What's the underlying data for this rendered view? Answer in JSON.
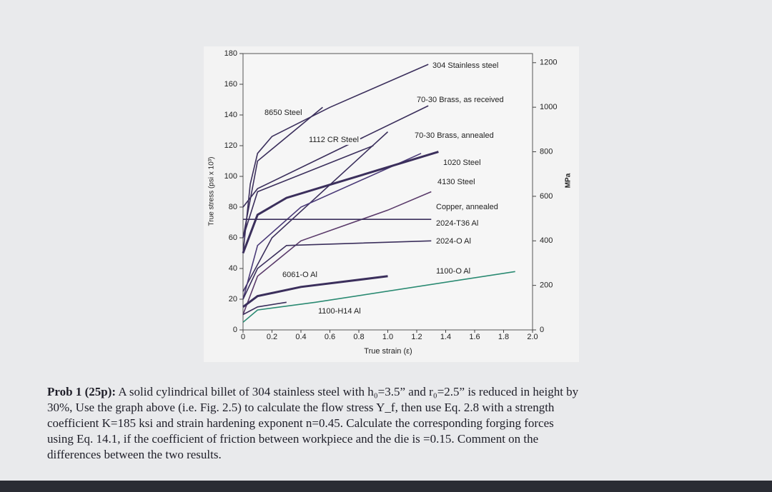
{
  "chart_data": {
    "type": "line",
    "xlabel": "True strain (ε)",
    "ylabel": "True stress (psi x 10³)",
    "y2label": "MPa",
    "xlim": [
      0,
      2.0
    ],
    "ylim": [
      0,
      180
    ],
    "y2lim": [
      0,
      1241
    ],
    "xticks": [
      0,
      0.2,
      0.4,
      0.6,
      0.8,
      {
        "value": 1,
        "label": "1.0"
      },
      1.2,
      1.4,
      1.6,
      1.8,
      {
        "value": 2,
        "label": "2.0"
      }
    ],
    "yticks": [
      0,
      20,
      40,
      60,
      80,
      100,
      120,
      140,
      160,
      180
    ],
    "y2ticks": [
      0,
      200,
      400,
      600,
      800,
      1000,
      1200
    ],
    "series": [
      {
        "name": "304 Stainless steel",
        "color": "#3b2f5c",
        "x": [
          0,
          0.05,
          0.1,
          0.2,
          0.6,
          1.28
        ],
        "values": [
          50,
          95,
          115,
          126,
          145,
          173
        ]
      },
      {
        "name": "70-30 Brass, as received",
        "color": "#3b2f5c",
        "x": [
          0,
          0.1,
          1.28
        ],
        "values": [
          80,
          92,
          146
        ]
      },
      {
        "name": "8650 Steel",
        "color": "#3b2f5c",
        "x": [
          0,
          0.1,
          0.55
        ],
        "values": [
          60,
          110,
          145
        ]
      },
      {
        "name": "1112 CR Steel",
        "color": "#3b2f5c",
        "x": [
          0,
          0.2,
          1.0
        ],
        "values": [
          25,
          60,
          129
        ]
      },
      {
        "name": "70-30 Brass, annealed",
        "color": "#4a3a78",
        "x": [
          0,
          0.1,
          0.4,
          1.23
        ],
        "values": [
          20,
          55,
          80,
          115
        ]
      },
      {
        "name": "1020 Steel",
        "color": "#3b2f5c",
        "x": [
          0,
          0.1,
          0.3,
          1.35
        ],
        "values": [
          50,
          75,
          86,
          116
        ]
      },
      {
        "name": "4130 Steel",
        "color": "#3b2f5c",
        "x": [
          0,
          0.1,
          0.9
        ],
        "values": [
          60,
          90,
          120
        ]
      },
      {
        "name": "Copper, annealed",
        "color": "#5a3a6a",
        "x": [
          0,
          0.1,
          0.4,
          1.0,
          1.3
        ],
        "values": [
          10,
          35,
          58,
          78,
          90
        ]
      },
      {
        "name": "2024-T36 Al",
        "color": "#3b2f5c",
        "x": [
          0,
          1.3
        ],
        "values": [
          72,
          72
        ]
      },
      {
        "name": "2024-O Al",
        "color": "#3b2f5c",
        "x": [
          0,
          0.1,
          0.3,
          1.3
        ],
        "values": [
          20,
          40,
          55,
          58
        ]
      },
      {
        "name": "6061-O Al",
        "color": "#3b2f5c",
        "x": [
          0,
          0.1,
          0.4,
          1.0
        ],
        "values": [
          15,
          22,
          28,
          35
        ]
      },
      {
        "name": "1100-O Al",
        "color": "#2a8a72",
        "x": [
          0,
          0.1,
          0.5,
          1.88
        ],
        "values": [
          5,
          13,
          18,
          38
        ]
      },
      {
        "name": "1100-H14 Al",
        "color": "#3b2f5c",
        "x": [
          0,
          0.1,
          0.3
        ],
        "values": [
          10,
          15,
          18
        ]
      }
    ]
  },
  "problem": {
    "heading": "Prob 1 (25p):",
    "lines": [
      " A solid cylindrical billet of 304 stainless steel with h₀=3.5” and r₀=2.5” is reduced in height by",
      "30%, Use the graph above (i.e. Fig. 2.5) to calculate the flow stress Y_f, then use Eq. 2.8 with a strength",
      "coefficient K=185 ksi and strain hardening exponent n=0.45. Calculate the corresponding forging forces",
      "using Eq. 14.1, if the coefficient of friction between workpiece and the die is =0.15. Comment on the",
      "differences between the two results."
    ]
  }
}
